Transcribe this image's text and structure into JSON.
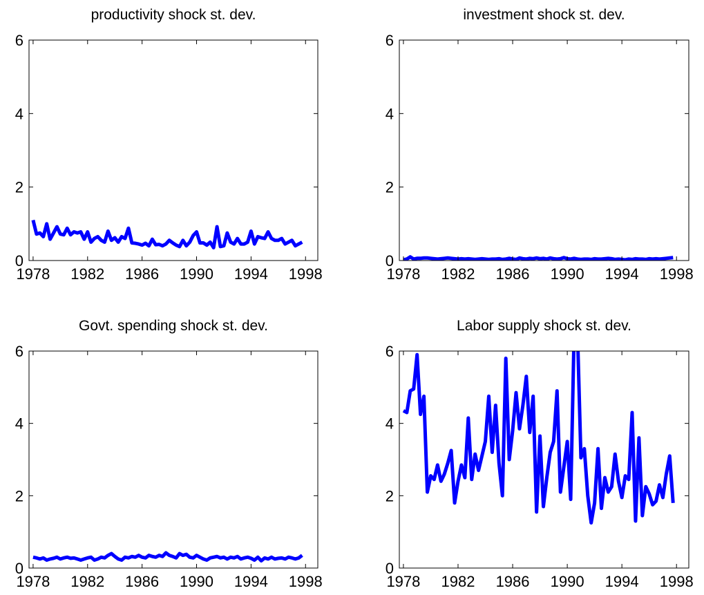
{
  "chart_data": [
    {
      "type": "line",
      "title": "productivity shock st. dev.",
      "color": "#0000ff",
      "x": [
        1978,
        1978.25,
        1978.5,
        1978.75,
        1979,
        1979.25,
        1979.5,
        1979.75,
        1980,
        1980.25,
        1980.5,
        1980.75,
        1981,
        1981.25,
        1981.5,
        1981.75,
        1982,
        1982.25,
        1982.5,
        1982.75,
        1983,
        1983.25,
        1983.5,
        1983.75,
        1984,
        1984.25,
        1984.5,
        1984.75,
        1985,
        1985.25,
        1985.5,
        1985.75,
        1986,
        1986.25,
        1986.5,
        1986.75,
        1987,
        1987.25,
        1987.5,
        1987.75,
        1988,
        1988.25,
        1988.5,
        1988.75,
        1989,
        1989.25,
        1989.5,
        1989.75,
        1990,
        1990.25,
        1990.5,
        1990.75,
        1991,
        1991.25,
        1991.5,
        1991.75,
        1992,
        1992.25,
        1992.5,
        1992.75,
        1993,
        1993.25,
        1993.5,
        1993.75,
        1994,
        1994.25,
        1994.5,
        1994.75,
        1995,
        1995.25,
        1995.5,
        1995.75,
        1996,
        1996.25,
        1996.5,
        1996.75,
        1997,
        1997.25,
        1997.5,
        1997.75
      ],
      "values": [
        1.1,
        0.72,
        0.75,
        0.65,
        1.0,
        0.58,
        0.75,
        0.92,
        0.72,
        0.7,
        0.88,
        0.7,
        0.78,
        0.75,
        0.78,
        0.58,
        0.78,
        0.5,
        0.6,
        0.65,
        0.55,
        0.5,
        0.8,
        0.55,
        0.62,
        0.5,
        0.65,
        0.6,
        0.88,
        0.48,
        0.47,
        0.45,
        0.42,
        0.47,
        0.4,
        0.58,
        0.43,
        0.44,
        0.4,
        0.45,
        0.55,
        0.48,
        0.42,
        0.38,
        0.55,
        0.4,
        0.5,
        0.68,
        0.78,
        0.48,
        0.48,
        0.42,
        0.5,
        0.35,
        0.92,
        0.38,
        0.4,
        0.75,
        0.5,
        0.45,
        0.6,
        0.45,
        0.45,
        0.5,
        0.8,
        0.45,
        0.65,
        0.62,
        0.6,
        0.78,
        0.6,
        0.55,
        0.55,
        0.6,
        0.45,
        0.5,
        0.55,
        0.4,
        0.45,
        0.5
      ],
      "xlim": [
        1977.7,
        1998.9
      ],
      "xticks": [
        1978,
        1982,
        1986,
        1990,
        1994,
        1998
      ],
      "ylim": [
        0,
        6
      ],
      "yticks": [
        0,
        2,
        4,
        6
      ]
    },
    {
      "type": "line",
      "title": "investment shock st. dev.",
      "color": "#0000ff",
      "x": [
        1978,
        1978.25,
        1978.5,
        1978.75,
        1979,
        1979.25,
        1979.5,
        1979.75,
        1980,
        1980.25,
        1980.5,
        1980.75,
        1981,
        1981.25,
        1981.5,
        1981.75,
        1982,
        1982.25,
        1982.5,
        1982.75,
        1983,
        1983.25,
        1983.5,
        1983.75,
        1984,
        1984.25,
        1984.5,
        1984.75,
        1985,
        1985.25,
        1985.5,
        1985.75,
        1986,
        1986.25,
        1986.5,
        1986.75,
        1987,
        1987.25,
        1987.5,
        1987.75,
        1988,
        1988.25,
        1988.5,
        1988.75,
        1989,
        1989.25,
        1989.5,
        1989.75,
        1990,
        1990.25,
        1990.5,
        1990.75,
        1991,
        1991.25,
        1991.5,
        1991.75,
        1992,
        1992.25,
        1992.5,
        1992.75,
        1993,
        1993.25,
        1993.5,
        1993.75,
        1994,
        1994.25,
        1994.5,
        1994.75,
        1995,
        1995.25,
        1995.5,
        1995.75,
        1996,
        1996.25,
        1996.5,
        1996.75,
        1997,
        1997.25,
        1997.5,
        1997.75
      ],
      "values": [
        0.02,
        0.04,
        0.1,
        0.04,
        0.06,
        0.06,
        0.07,
        0.07,
        0.06,
        0.05,
        0.04,
        0.05,
        0.06,
        0.07,
        0.06,
        0.05,
        0.04,
        0.05,
        0.04,
        0.05,
        0.04,
        0.03,
        0.04,
        0.05,
        0.04,
        0.03,
        0.04,
        0.04,
        0.05,
        0.03,
        0.04,
        0.06,
        0.04,
        0.03,
        0.07,
        0.05,
        0.04,
        0.06,
        0.05,
        0.07,
        0.05,
        0.06,
        0.04,
        0.07,
        0.05,
        0.04,
        0.05,
        0.08,
        0.05,
        0.04,
        0.06,
        0.04,
        0.03,
        0.04,
        0.04,
        0.03,
        0.05,
        0.04,
        0.04,
        0.05,
        0.06,
        0.05,
        0.03,
        0.04,
        0.03,
        0.02,
        0.04,
        0.03,
        0.05,
        0.04,
        0.04,
        0.03,
        0.05,
        0.04,
        0.05,
        0.04,
        0.05,
        0.06,
        0.07,
        0.08
      ],
      "xlim": [
        1977.7,
        1998.9
      ],
      "xticks": [
        1978,
        1982,
        1986,
        1990,
        1994,
        1998
      ],
      "ylim": [
        0,
        6
      ],
      "yticks": [
        0,
        2,
        4,
        6
      ]
    },
    {
      "type": "line",
      "title": "Govt. spending shock st. dev.",
      "color": "#0000ff",
      "x": [
        1978,
        1978.25,
        1978.5,
        1978.75,
        1979,
        1979.25,
        1979.5,
        1979.75,
        1980,
        1980.25,
        1980.5,
        1980.75,
        1981,
        1981.25,
        1981.5,
        1981.75,
        1982,
        1982.25,
        1982.5,
        1982.75,
        1983,
        1983.25,
        1983.5,
        1983.75,
        1984,
        1984.25,
        1984.5,
        1984.75,
        1985,
        1985.25,
        1985.5,
        1985.75,
        1986,
        1986.25,
        1986.5,
        1986.75,
        1987,
        1987.25,
        1987.5,
        1987.75,
        1988,
        1988.25,
        1988.5,
        1988.75,
        1989,
        1989.25,
        1989.5,
        1989.75,
        1990,
        1990.25,
        1990.5,
        1990.75,
        1991,
        1991.25,
        1991.5,
        1991.75,
        1992,
        1992.25,
        1992.5,
        1992.75,
        1993,
        1993.25,
        1993.5,
        1993.75,
        1994,
        1994.25,
        1994.5,
        1994.75,
        1995,
        1995.25,
        1995.5,
        1995.75,
        1996,
        1996.25,
        1996.5,
        1996.75,
        1997,
        1997.25,
        1997.5,
        1997.75
      ],
      "values": [
        0.3,
        0.28,
        0.25,
        0.28,
        0.22,
        0.25,
        0.27,
        0.3,
        0.25,
        0.28,
        0.3,
        0.27,
        0.28,
        0.25,
        0.22,
        0.25,
        0.28,
        0.3,
        0.22,
        0.25,
        0.3,
        0.28,
        0.35,
        0.4,
        0.32,
        0.25,
        0.22,
        0.3,
        0.28,
        0.32,
        0.3,
        0.35,
        0.3,
        0.28,
        0.35,
        0.32,
        0.3,
        0.35,
        0.32,
        0.42,
        0.35,
        0.32,
        0.28,
        0.4,
        0.35,
        0.38,
        0.3,
        0.28,
        0.35,
        0.3,
        0.25,
        0.22,
        0.28,
        0.3,
        0.32,
        0.28,
        0.3,
        0.25,
        0.3,
        0.28,
        0.32,
        0.25,
        0.28,
        0.3,
        0.27,
        0.22,
        0.3,
        0.2,
        0.28,
        0.25,
        0.3,
        0.25,
        0.27,
        0.28,
        0.25,
        0.3,
        0.28,
        0.25,
        0.28,
        0.35
      ],
      "xlim": [
        1977.7,
        1998.9
      ],
      "xticks": [
        1978,
        1982,
        1986,
        1990,
        1994,
        1998
      ],
      "ylim": [
        0,
        6
      ],
      "yticks": [
        0,
        2,
        4,
        6
      ]
    },
    {
      "type": "line",
      "title": "Labor supply shock st. dev.",
      "color": "#0000ff",
      "x": [
        1978,
        1978.25,
        1978.5,
        1978.75,
        1979,
        1979.25,
        1979.5,
        1979.75,
        1980,
        1980.25,
        1980.5,
        1980.75,
        1981,
        1981.25,
        1981.5,
        1981.75,
        1982,
        1982.25,
        1982.5,
        1982.75,
        1983,
        1983.25,
        1983.5,
        1983.75,
        1984,
        1984.25,
        1984.5,
        1984.75,
        1985,
        1985.25,
        1985.5,
        1985.75,
        1986,
        1986.25,
        1986.5,
        1986.75,
        1987,
        1987.25,
        1987.5,
        1987.75,
        1988,
        1988.25,
        1988.5,
        1988.75,
        1989,
        1989.25,
        1989.5,
        1989.75,
        1990,
        1990.25,
        1990.5,
        1990.75,
        1991,
        1991.25,
        1991.5,
        1991.75,
        1992,
        1992.25,
        1992.5,
        1992.75,
        1993,
        1993.25,
        1993.5,
        1993.75,
        1994,
        1994.25,
        1994.5,
        1994.75,
        1995,
        1995.25,
        1995.5,
        1995.75,
        1996,
        1996.25,
        1996.5,
        1996.75,
        1997,
        1997.25,
        1997.5,
        1997.75
      ],
      "values": [
        4.35,
        4.3,
        4.9,
        4.95,
        5.9,
        4.25,
        4.75,
        2.1,
        2.55,
        2.45,
        2.85,
        2.4,
        2.6,
        2.9,
        3.25,
        1.8,
        2.4,
        2.85,
        2.5,
        4.15,
        2.45,
        3.15,
        2.7,
        3.1,
        3.5,
        4.75,
        3.2,
        4.5,
        2.9,
        2.0,
        5.8,
        3.0,
        3.8,
        4.85,
        3.85,
        4.5,
        5.3,
        3.75,
        4.75,
        1.55,
        3.65,
        1.7,
        2.5,
        3.2,
        3.5,
        4.9,
        2.1,
        2.8,
        3.5,
        1.9,
        6.5,
        6.5,
        3.05,
        3.3,
        2.0,
        1.25,
        1.8,
        3.3,
        1.65,
        2.5,
        2.1,
        2.25,
        3.15,
        2.4,
        1.95,
        2.55,
        2.45,
        4.3,
        1.3,
        3.6,
        1.45,
        2.25,
        2.05,
        1.75,
        1.85,
        2.3,
        1.95,
        2.6,
        3.1,
        1.8
      ],
      "xlim": [
        1977.7,
        1998.9
      ],
      "xticks": [
        1978,
        1982,
        1986,
        1990,
        1994,
        1998
      ],
      "ylim": [
        0,
        6
      ],
      "yticks": [
        0,
        2,
        4,
        6
      ]
    }
  ]
}
